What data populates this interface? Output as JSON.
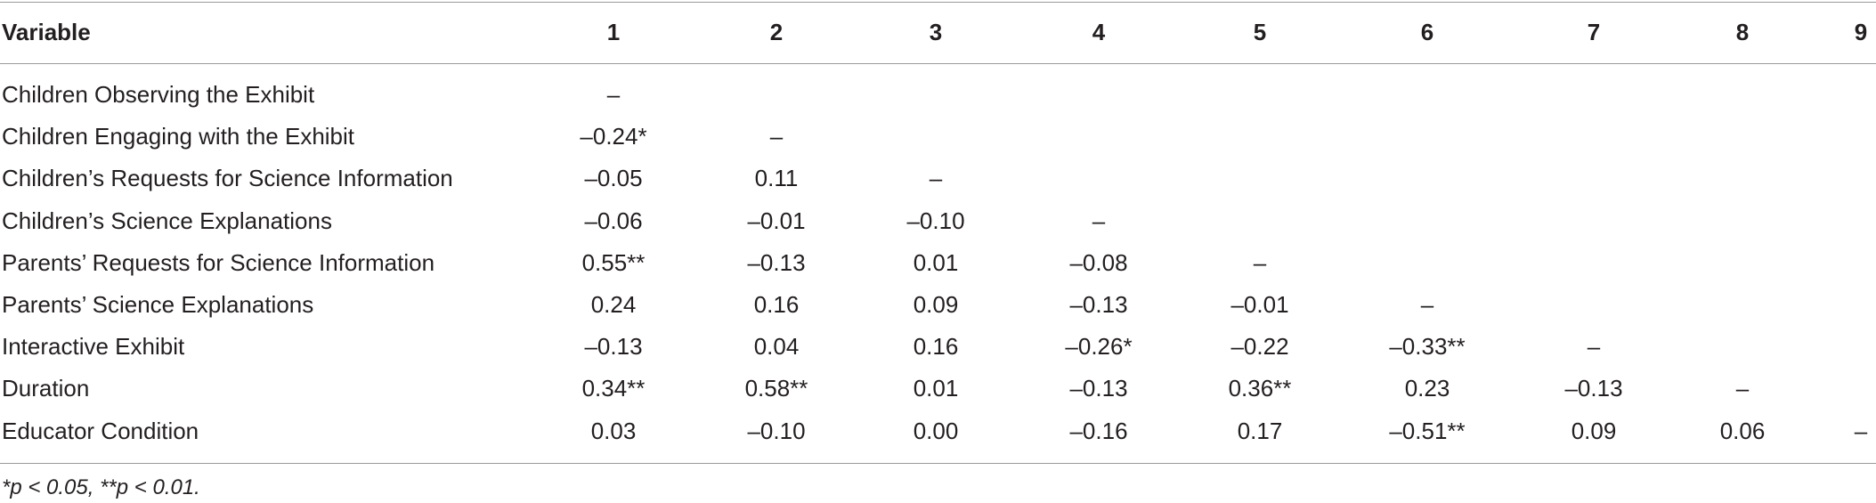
{
  "table": {
    "header": [
      "Variable",
      "1",
      "2",
      "3",
      "4",
      "5",
      "6",
      "7",
      "8",
      "9"
    ],
    "rows": [
      {
        "label": "Children Observing the Exhibit",
        "cells": [
          "–"
        ]
      },
      {
        "label": "Children Engaging with the Exhibit",
        "cells": [
          "–0.24*",
          "–"
        ]
      },
      {
        "label": "Children’s Requests for Science Information",
        "cells": [
          "–0.05",
          "0.11",
          "–"
        ]
      },
      {
        "label": "Children’s Science Explanations",
        "cells": [
          "–0.06",
          "–0.01",
          "–0.10",
          "–"
        ]
      },
      {
        "label": "Parents’ Requests for Science Information",
        "cells": [
          "0.55**",
          "–0.13",
          "0.01",
          "–0.08",
          "–"
        ]
      },
      {
        "label": "Parents’ Science Explanations",
        "cells": [
          "0.24",
          "0.16",
          "0.09",
          "–0.13",
          "–0.01",
          "–"
        ]
      },
      {
        "label": "Interactive Exhibit",
        "cells": [
          "–0.13",
          "0.04",
          "0.16",
          "–0.26*",
          "–0.22",
          "–0.33**",
          "–"
        ]
      },
      {
        "label": "Duration",
        "cells": [
          "0.34**",
          "0.58**",
          "0.01",
          "–0.13",
          "0.36**",
          "0.23",
          "–0.13",
          "–"
        ]
      },
      {
        "label": "Educator Condition",
        "cells": [
          "0.03",
          "–0.10",
          "0.00",
          "–0.16",
          "0.17",
          "–0.51**",
          "0.09",
          "0.06",
          "–"
        ]
      }
    ],
    "footnote": "*p < 0.05, **p < 0.01."
  }
}
